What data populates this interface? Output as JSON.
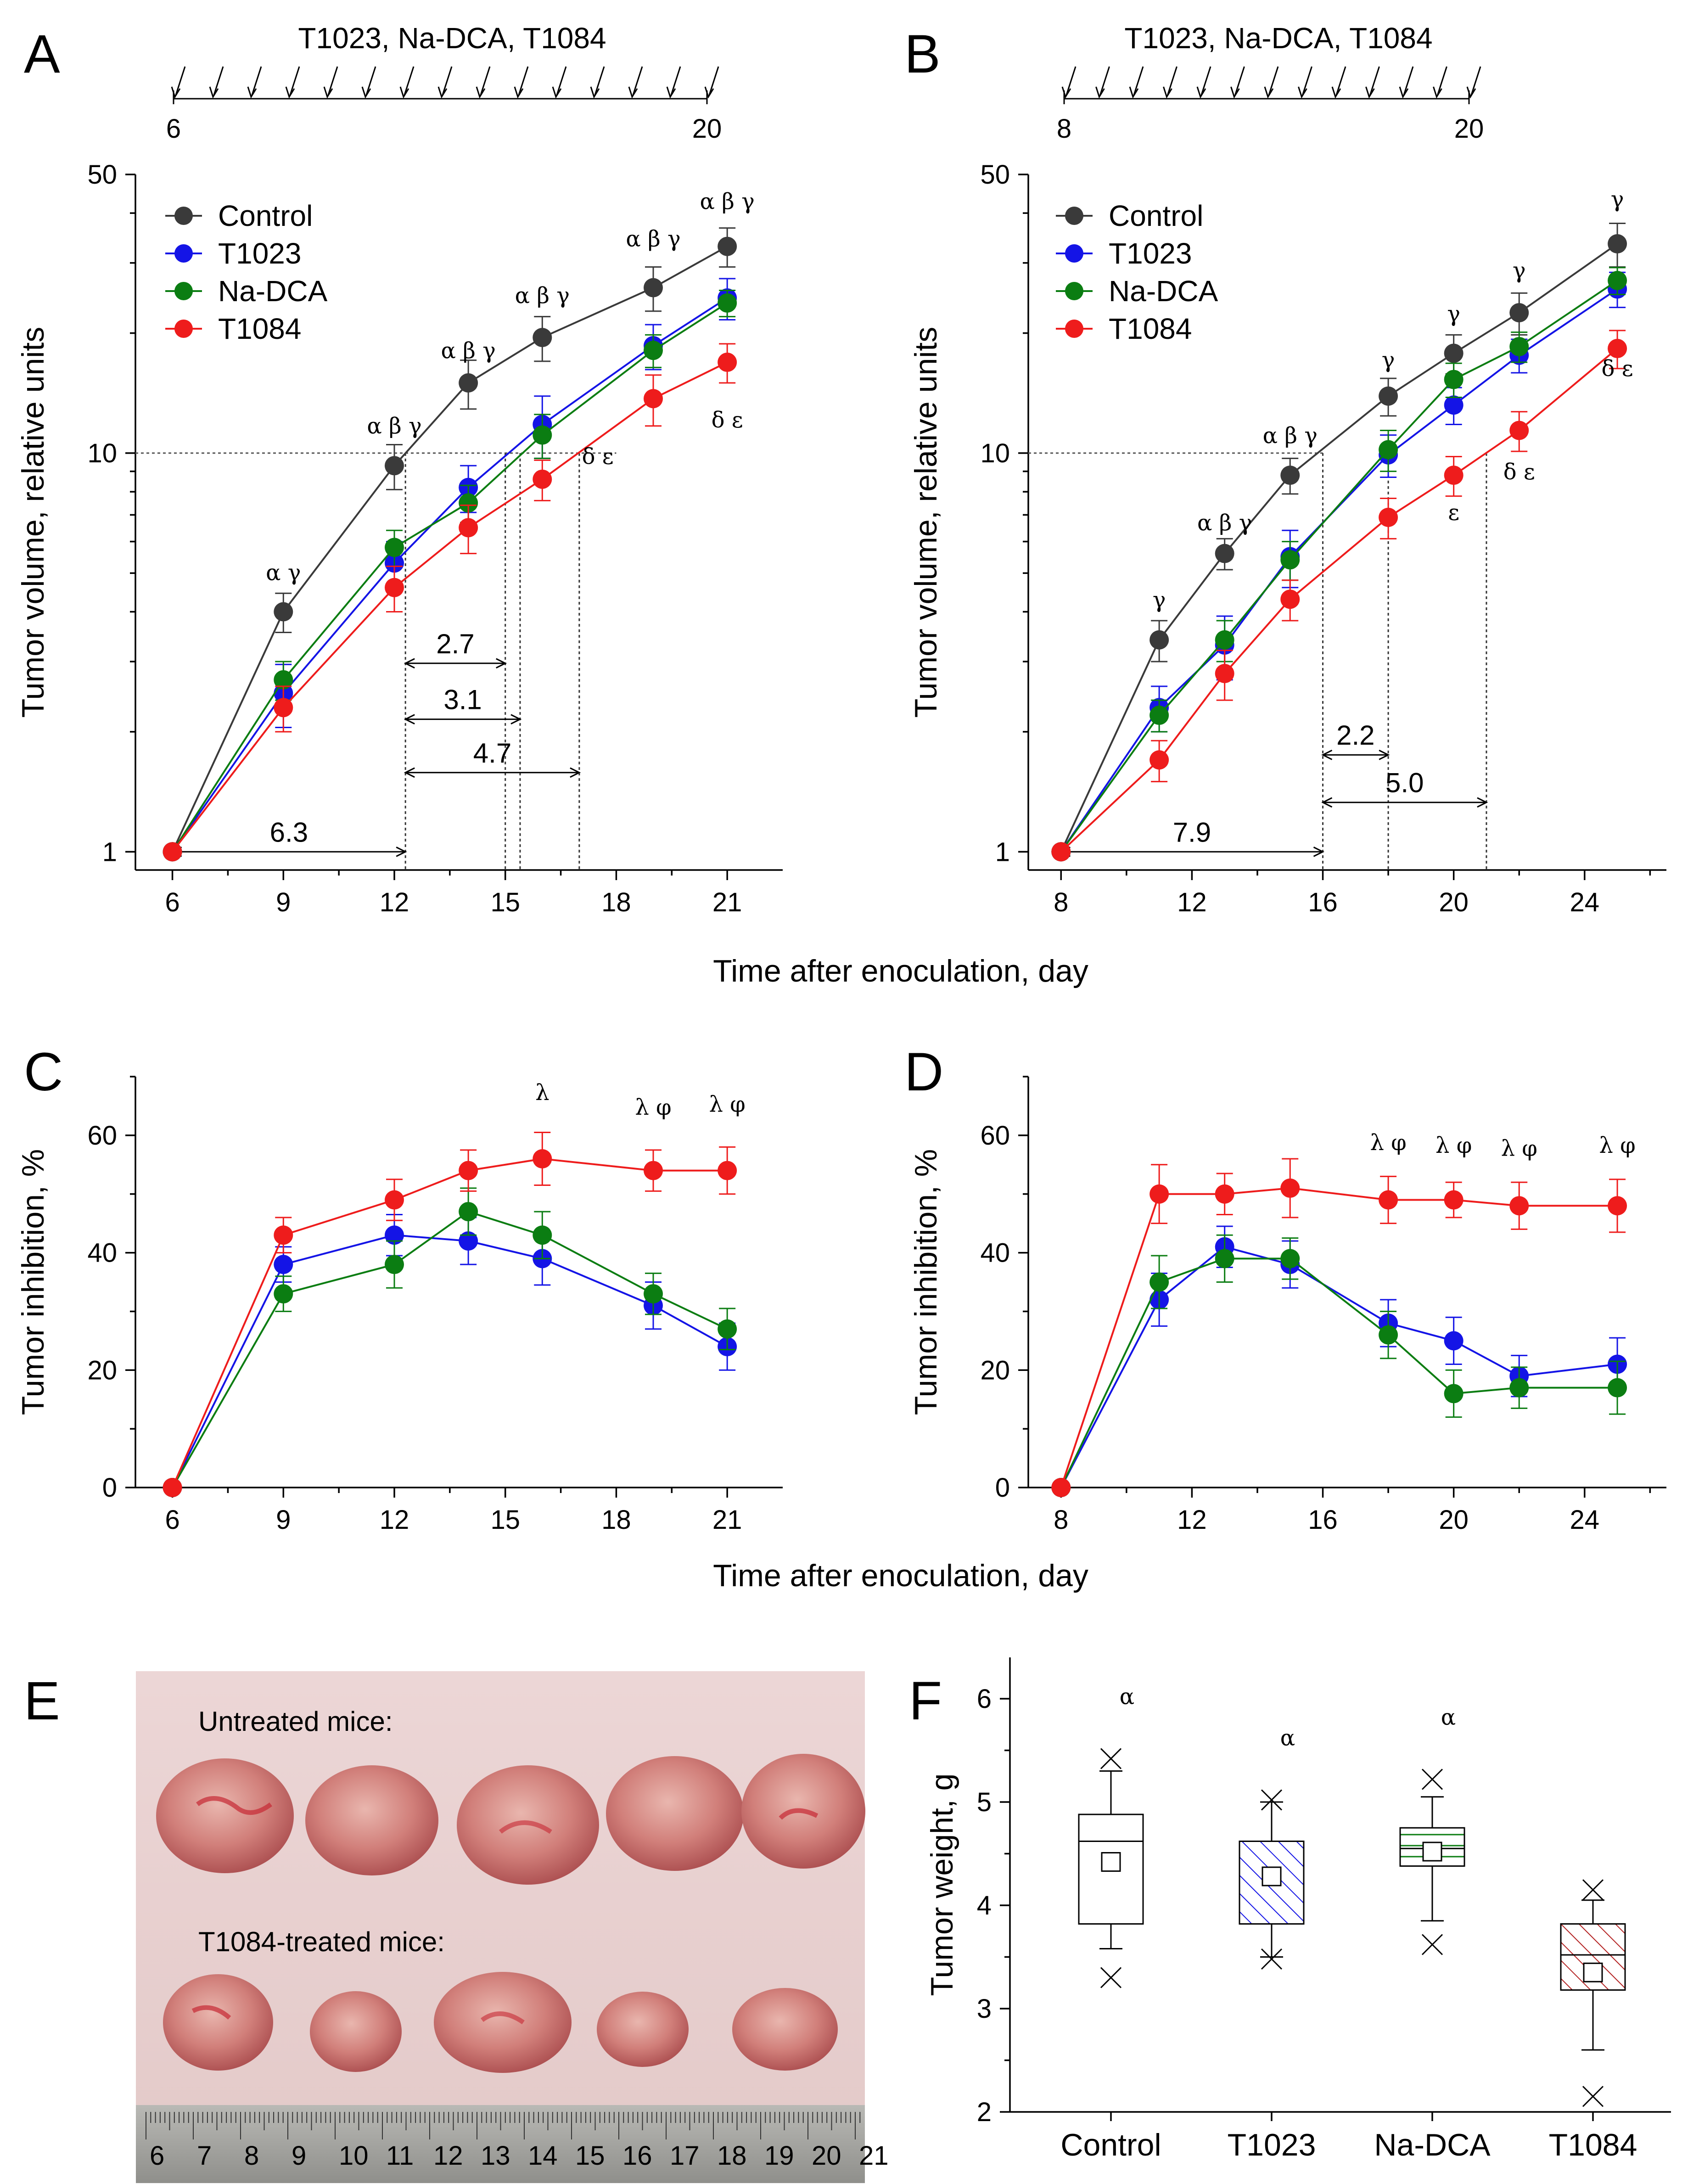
{
  "figure": {
    "colors": {
      "control": "#3a3a3a",
      "t1023": "#1414e6",
      "nadca": "#0b7d12",
      "t1084": "#ee1c1c"
    }
  },
  "panels": {
    "A": {
      "letter": "A",
      "schedule": {
        "title": "T1023, Na-DCA, T1084",
        "start_label": "6",
        "end_label": "20",
        "arrows": 15
      },
      "legend": [
        "Control",
        "T1023",
        "Na-DCA",
        "T1084"
      ],
      "annotations": [
        {
          "text": "6.3",
          "x1": 6,
          "x2": 12.3,
          "y": 1
        },
        {
          "text": "2.7",
          "x1": 12.3,
          "x2": 15,
          "y": 2.97
        },
        {
          "text": "3.1",
          "x1": 12.3,
          "x2": 15.4,
          "y": 2.15
        },
        {
          "text": "4.7",
          "x1": 12.3,
          "x2": 17,
          "y": 1.58
        }
      ],
      "vlines": [
        12.3,
        15,
        15.4,
        17
      ],
      "hline": {
        "y": 10,
        "x_from": 6,
        "x_to": 18
      },
      "sig_top": [
        {
          "x": 9,
          "text": "α γ",
          "y": 4.8
        },
        {
          "x": 12,
          "text": "α β γ",
          "y": 11.2
        },
        {
          "x": 14,
          "text": "α β γ",
          "y": 17.3
        },
        {
          "x": 16,
          "text": "α β γ",
          "y": 23.8
        },
        {
          "x": 19,
          "text": "α β γ",
          "y": 33
        },
        {
          "x": 21,
          "text": "α β γ",
          "y": 41
        }
      ],
      "sig_bottom": [
        {
          "x": 17.5,
          "text": "δ ε",
          "y": 9.4
        },
        {
          "x": 21,
          "text": "δ ε",
          "y": 11.6
        }
      ]
    },
    "B": {
      "letter": "B",
      "schedule": {
        "title": "T1023, Na-DCA, T1084",
        "start_label": "8",
        "end_label": "20",
        "arrows": 13
      },
      "legend": [
        "Control",
        "T1023",
        "Na-DCA",
        "T1084"
      ],
      "annotations": [
        {
          "text": "7.9",
          "x1": 8,
          "x2": 16,
          "y": 1
        },
        {
          "text": "2.2",
          "x1": 16,
          "x2": 18,
          "y": 1.75
        },
        {
          "text": "5.0",
          "x1": 16,
          "x2": 21,
          "y": 1.33
        }
      ],
      "vlines": [
        16,
        18,
        21
      ],
      "hline": {
        "y": 10,
        "x_from": 8,
        "x_to": 16
      },
      "sig_top": [
        {
          "x": 11,
          "text": "γ",
          "y": 4.1
        },
        {
          "x": 13,
          "text": "α β γ",
          "y": 6.4
        },
        {
          "x": 15,
          "text": "α β γ",
          "y": 10.6
        },
        {
          "x": 18,
          "text": "γ",
          "y": 16.4
        },
        {
          "x": 20,
          "text": "γ",
          "y": 21.4
        },
        {
          "x": 22,
          "text": "γ",
          "y": 27.5
        },
        {
          "x": 25,
          "text": "γ",
          "y": 41.5
        }
      ],
      "sig_bottom": [
        {
          "x": 20,
          "text": "ε",
          "y": 6.8
        },
        {
          "x": 22,
          "text": "δ ε",
          "y": 8.6
        },
        {
          "x": 25,
          "text": "δ ε",
          "y": 15.6
        }
      ]
    },
    "C": {
      "letter": "C",
      "sig_top": [
        {
          "x": 16,
          "text": "λ",
          "y": 66
        },
        {
          "x": 19,
          "text": "λ φ",
          "y": 63.5
        },
        {
          "x": 21,
          "text": "λ φ",
          "y": 64
        }
      ]
    },
    "D": {
      "letter": "D",
      "sig_top": [
        {
          "x": 18,
          "text": "λ φ",
          "y": 57.5
        },
        {
          "x": 20,
          "text": "λ φ",
          "y": 57
        },
        {
          "x": 22,
          "text": "λ φ",
          "y": 56.5
        },
        {
          "x": 25,
          "text": "λ φ",
          "y": 57
        }
      ]
    },
    "E": {
      "letter": "E",
      "untreated_label": "Untreated mice:",
      "treated_label": "T1084-treated mice:",
      "ruler_labels": [
        "6",
        "7",
        "8",
        "9",
        "10",
        "11",
        "12",
        "13",
        "14",
        "15",
        "16",
        "17",
        "18",
        "19",
        "20",
        "21"
      ]
    },
    "F": {
      "letter": "F"
    }
  },
  "shared": {
    "xlabel_growth": "Time after enoculation, day",
    "xlabel_inhibition": "Time after enoculation, day"
  },
  "chart_data": [
    {
      "panel": "A",
      "type": "line",
      "title": "",
      "xlabel": "Time after enoculation, day",
      "ylabel": "Tumor volume, relative units",
      "yscale": "log",
      "xlim": [
        5,
        22.5
      ],
      "ylim": [
        0.9,
        50
      ],
      "xticks": [
        6,
        9,
        12,
        15,
        18,
        21
      ],
      "yticks": [
        1,
        10,
        50
      ],
      "series": [
        {
          "name": "Control",
          "color": "#3a3a3a",
          "x": [
            6,
            9,
            12,
            14,
            16,
            19,
            21
          ],
          "y": [
            1,
            4,
            9.3,
            15,
            19.5,
            26,
            33
          ],
          "err": [
            0,
            0.45,
            1.2,
            2.1,
            2.5,
            3.3,
            3.7
          ]
        },
        {
          "name": "T1023",
          "color": "#1414e6",
          "x": [
            6,
            9,
            12,
            14,
            16,
            19,
            21
          ],
          "y": [
            1,
            2.5,
            5.3,
            8.2,
            11.8,
            18.6,
            24.5
          ],
          "err": [
            0,
            0.45,
            0.7,
            1.1,
            2.1,
            2.4,
            2.9
          ]
        },
        {
          "name": "Na-DCA",
          "color": "#0b7d12",
          "x": [
            6,
            9,
            12,
            14,
            16,
            19,
            21
          ],
          "y": [
            1,
            2.7,
            5.8,
            7.5,
            11.1,
            18.1,
            23.8
          ],
          "err": [
            0,
            0.3,
            0.6,
            0.8,
            1.4,
            1.7,
            1.8
          ]
        },
        {
          "name": "T1084",
          "color": "#ee1c1c",
          "x": [
            6,
            9,
            12,
            14,
            16,
            19,
            21
          ],
          "y": [
            1,
            2.3,
            4.6,
            6.5,
            8.6,
            13.7,
            16.9
          ],
          "err": [
            0,
            0.3,
            0.6,
            0.9,
            1.0,
            2.0,
            1.9
          ]
        }
      ]
    },
    {
      "panel": "B",
      "type": "line",
      "title": "",
      "xlabel": "Time after enoculation, day",
      "ylabel": "Tumor volume, relative units",
      "yscale": "log",
      "xlim": [
        7,
        26.5
      ],
      "ylim": [
        0.9,
        50
      ],
      "xticks": [
        8,
        12,
        16,
        20,
        24
      ],
      "yticks": [
        1,
        10,
        50
      ],
      "series": [
        {
          "name": "Control",
          "color": "#3a3a3a",
          "x": [
            8,
            11,
            13,
            15,
            18,
            20,
            22,
            25
          ],
          "y": [
            1,
            3.4,
            5.6,
            8.8,
            13.9,
            17.8,
            22.5,
            33.5
          ],
          "err": [
            0,
            0.4,
            0.5,
            0.9,
            1.5,
            2.0,
            2.7,
            4.2
          ]
        },
        {
          "name": "T1023",
          "color": "#1414e6",
          "x": [
            8,
            11,
            13,
            15,
            18,
            20,
            22,
            25
          ],
          "y": [
            1,
            2.3,
            3.3,
            5.5,
            9.9,
            13.2,
            17.6,
            25.8
          ],
          "err": [
            0,
            0.3,
            0.6,
            0.9,
            1.2,
            1.4,
            1.7,
            2.6
          ]
        },
        {
          "name": "Na-DCA",
          "color": "#0b7d12",
          "x": [
            8,
            11,
            13,
            15,
            18,
            20,
            22,
            25
          ],
          "y": [
            1,
            2.2,
            3.4,
            5.4,
            10.2,
            15.3,
            18.5,
            27.1
          ],
          "err": [
            0,
            0.2,
            0.4,
            0.6,
            1.2,
            1.5,
            1.6,
            2.1
          ]
        },
        {
          "name": "T1084",
          "color": "#ee1c1c",
          "x": [
            8,
            11,
            13,
            15,
            18,
            20,
            22,
            25
          ],
          "y": [
            1,
            1.7,
            2.8,
            4.3,
            6.9,
            8.8,
            11.4,
            18.3
          ],
          "err": [
            0,
            0.2,
            0.4,
            0.5,
            0.8,
            1.0,
            1.3,
            2.0
          ]
        }
      ]
    },
    {
      "panel": "C",
      "type": "line",
      "title": "",
      "xlabel": "Time after enoculation, day",
      "ylabel": "Tumor inhibition, %",
      "xlim": [
        5,
        22.5
      ],
      "ylim": [
        0,
        70
      ],
      "xticks": [
        6,
        9,
        12,
        15,
        18,
        21
      ],
      "yticks": [
        0,
        20,
        40,
        60
      ],
      "series": [
        {
          "name": "T1023",
          "color": "#1414e6",
          "x": [
            6,
            9,
            12,
            14,
            16,
            19,
            21
          ],
          "y": [
            0,
            38,
            43,
            42,
            39,
            31,
            24
          ],
          "err": [
            0,
            3,
            3.5,
            4,
            4.5,
            4,
            4
          ]
        },
        {
          "name": "Na-DCA",
          "color": "#0b7d12",
          "x": [
            6,
            9,
            12,
            14,
            16,
            19,
            21
          ],
          "y": [
            0,
            33,
            38,
            47,
            43,
            33,
            27
          ],
          "err": [
            0,
            3,
            4,
            4,
            4,
            3.5,
            3.5
          ]
        },
        {
          "name": "T1084",
          "color": "#ee1c1c",
          "x": [
            6,
            9,
            12,
            14,
            16,
            19,
            21
          ],
          "y": [
            0,
            43,
            49,
            54,
            56,
            54,
            54
          ],
          "err": [
            0,
            3,
            3.5,
            3.5,
            4.5,
            3.5,
            4
          ]
        }
      ]
    },
    {
      "panel": "D",
      "type": "line",
      "title": "",
      "xlabel": "Time after enoculation, day",
      "ylabel": "Tumor inhibition, %",
      "xlim": [
        7,
        26.5
      ],
      "ylim": [
        0,
        70
      ],
      "xticks": [
        8,
        12,
        16,
        20,
        24
      ],
      "yticks": [
        0,
        20,
        40,
        60
      ],
      "series": [
        {
          "name": "T1023",
          "color": "#1414e6",
          "x": [
            8,
            11,
            13,
            15,
            18,
            20,
            22,
            25
          ],
          "y": [
            0,
            32,
            41,
            38,
            28,
            25,
            19,
            21
          ],
          "err": [
            0,
            4.5,
            3.5,
            4,
            4,
            4,
            3.5,
            4.5
          ]
        },
        {
          "name": "Na-DCA",
          "color": "#0b7d12",
          "x": [
            8,
            11,
            13,
            15,
            18,
            20,
            22,
            25
          ],
          "y": [
            0,
            35,
            39,
            39,
            26,
            16,
            17,
            17
          ],
          "err": [
            0,
            4.5,
            4,
            3.5,
            4,
            4,
            3.5,
            4.5
          ]
        },
        {
          "name": "T1084",
          "color": "#ee1c1c",
          "x": [
            8,
            11,
            13,
            15,
            18,
            20,
            22,
            25
          ],
          "y": [
            0,
            50,
            50,
            51,
            49,
            49,
            48,
            48
          ],
          "err": [
            0,
            5,
            3.5,
            5,
            4,
            3,
            4,
            4.5
          ]
        }
      ]
    },
    {
      "panel": "F",
      "type": "box",
      "title": "",
      "xlabel": "",
      "ylabel": "Tumor weight, g",
      "ylim": [
        2,
        6.4
      ],
      "yticks": [
        2,
        3,
        4,
        5,
        6
      ],
      "categories": [
        "Control",
        "T1023",
        "Na-DCA",
        "T1084"
      ],
      "boxes": [
        {
          "name": "Control",
          "color": "#000000",
          "hatch": "none",
          "q1": 3.82,
          "median": 4.62,
          "q3": 4.88,
          "mean": 4.42,
          "whisker_low": 3.58,
          "whisker_high": 5.3,
          "min": 3.3,
          "max": 5.42,
          "sig": "α",
          "sig_y": 5.95
        },
        {
          "name": "T1023",
          "color": "#1414e6",
          "hatch": "diag-up",
          "q1": 3.82,
          "median": 4.62,
          "q3": 4.62,
          "mean": 4.28,
          "whisker_low": 3.5,
          "whisker_high": 5.0,
          "min": 3.48,
          "max": 5.02,
          "sig": "α",
          "sig_y": 5.55
        },
        {
          "name": "Na-DCA",
          "color": "#0b7d12",
          "hatch": "horizontal",
          "q1": 4.38,
          "median": 4.55,
          "q3": 4.75,
          "mean": 4.52,
          "whisker_low": 3.85,
          "whisker_high": 5.05,
          "min": 3.62,
          "max": 5.22,
          "sig": "α",
          "sig_y": 5.75
        },
        {
          "name": "T1084",
          "color": "#b32222",
          "hatch": "diag-down",
          "q1": 3.18,
          "median": 3.52,
          "q3": 3.82,
          "mean": 3.35,
          "whisker_low": 2.6,
          "whisker_high": 4.05,
          "min": 2.15,
          "max": 4.15,
          "sig": "",
          "sig_y": 0
        }
      ]
    }
  ]
}
